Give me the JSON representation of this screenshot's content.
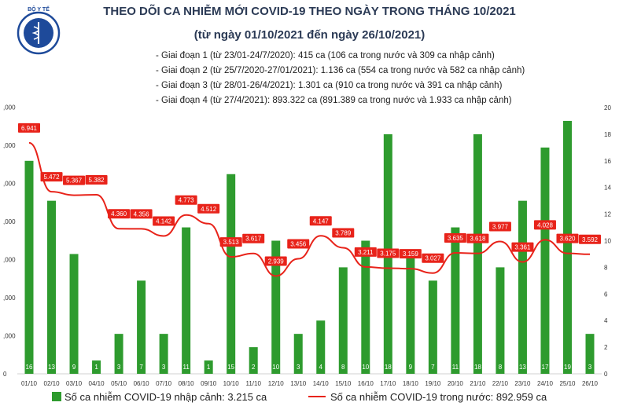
{
  "header": {
    "title": "THEO DÕI CA NHIỄM MỚI COVID-19 THEO NGÀY TRONG THÁNG 10/2021",
    "subtitle": "(từ ngày 01/10/2021 đến ngày 26/10/2021)"
  },
  "logo": {
    "text": "BỘ Y TẾ",
    "icon": "ministry-of-health-emblem"
  },
  "phases": [
    "- Giai đoạn 1 (từ 23/01-24/7/2020): 415 ca (106 ca trong nước và 309 ca nhập cảnh)",
    "- Giai đoạn 2 (từ 25/7/2020-27/01/2021): 1.136 ca (554 ca trong nước và 582 ca nhập cảnh)",
    "- Giai đoạn 3 (từ 28/01-26/4/2021): 1.301 ca (910 ca trong nước và 391 ca nhập cảnh)",
    "- Giai đoạn 4 (từ 27/4/2021): 893.322 ca (891.389 ca trong nước và 1.933 ca nhập cảnh)"
  ],
  "legend": {
    "bars": "Số ca nhiễm COVID-19 nhập cảnh: 3.215 ca",
    "line": "Số ca nhiễm COVID-19 trong nước: 892.959 ca"
  },
  "colors": {
    "bar": "#2e9b2e",
    "line": "#e8231a",
    "label_bg": "#e8231a"
  },
  "chart_data": {
    "type": "bar+line",
    "categories": [
      "01/10",
      "02/10",
      "03/10",
      "04/10",
      "05/10",
      "06/10",
      "07/10",
      "08/10",
      "09/10",
      "10/10",
      "11/10",
      "12/10",
      "13/10",
      "14/10",
      "15/10",
      "16/10",
      "17/10",
      "18/10",
      "19/10",
      "20/10",
      "21/10",
      "22/10",
      "23/10",
      "24/10",
      "25/10",
      "26/10"
    ],
    "series": [
      {
        "name": "Số ca nhiễm COVID-19 nhập cảnh",
        "type": "bar",
        "axis": "right",
        "values": [
          16,
          13,
          9,
          1,
          3,
          7,
          3,
          11,
          1,
          15,
          2,
          10,
          3,
          4,
          8,
          10,
          18,
          9,
          7,
          11,
          18,
          8,
          13,
          17,
          19,
          3
        ],
        "labels": [
          "16",
          "13",
          "9",
          "1",
          "3",
          "7",
          "3",
          "11",
          "1",
          "15",
          "2",
          "10",
          "3",
          "4",
          "8",
          "10",
          "18",
          "9",
          "7",
          "11",
          "18",
          "8",
          "13",
          "17",
          "19",
          "3"
        ]
      },
      {
        "name": "Số ca nhiễm COVID-19 trong nước",
        "type": "line",
        "axis": "left",
        "values": [
          6941,
          5472,
          5367,
          5382,
          4360,
          4356,
          4142,
          4773,
          4512,
          3513,
          3617,
          2939,
          3456,
          4147,
          3789,
          3211,
          3175,
          3159,
          3027,
          3635,
          3618,
          3977,
          3361,
          4028,
          3620,
          3592
        ],
        "labels": [
          "6.941",
          "5.472",
          "5.367",
          "5.382",
          "4.360",
          "4.356",
          "4.142",
          "4.773",
          "4.512",
          "3.513",
          "3.617",
          "2.939",
          "3.456",
          "4.147",
          "3.789",
          "3.211",
          "3.175",
          "3.159",
          "3.027",
          "3.635",
          "3.618",
          "3.977",
          "3.361",
          "4.028",
          "3.620",
          "3.592"
        ]
      }
    ],
    "left_axis": {
      "ticks": [
        "0",
        ",000",
        ",000",
        ",000",
        ",000",
        ",000",
        ",000",
        ",000"
      ]
    },
    "right_axis": {
      "ylim": [
        0,
        20
      ],
      "ticks": [
        "0",
        "2",
        "4",
        "6",
        "8",
        "10",
        "12",
        "14",
        "16",
        "18",
        "20"
      ]
    },
    "grid": false,
    "legend_position": "bottom"
  }
}
